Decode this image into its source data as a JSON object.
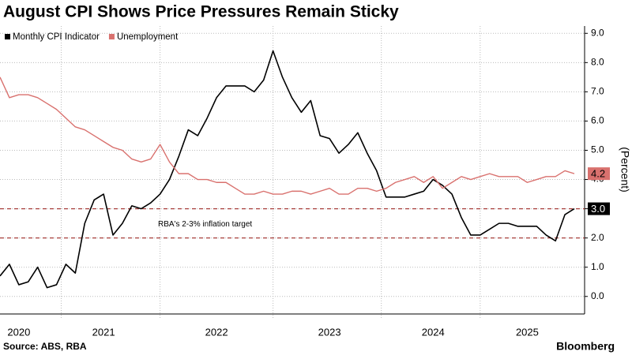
{
  "chart_data": {
    "type": "line",
    "title": "August CPI Shows Price Pressures Remain Sticky",
    "source": "Source: ABS, RBA",
    "brand": "Bloomberg",
    "y_axis_label": "(Percent)",
    "categories": [
      null,
      null,
      "2020",
      null,
      null,
      null,
      null,
      null,
      null,
      null,
      null,
      "2021",
      null,
      null,
      null,
      null,
      null,
      null,
      null,
      null,
      null,
      null,
      null,
      "2022",
      null,
      null,
      null,
      null,
      null,
      null,
      null,
      null,
      null,
      null,
      null,
      "2023",
      null,
      null,
      null,
      null,
      null,
      null,
      null,
      null,
      null,
      null,
      "2024",
      null,
      null,
      null,
      null,
      null,
      null,
      null,
      null,
      null,
      "2025",
      null,
      null,
      null,
      null,
      null
    ],
    "series": [
      {
        "name": "Monthly CPI Indicator",
        "color": "#000000",
        "values": [
          0.7,
          1.1,
          0.4,
          0.5,
          1.0,
          0.3,
          0.4,
          1.1,
          0.8,
          2.5,
          3.3,
          3.5,
          2.1,
          2.5,
          3.1,
          3.0,
          3.2,
          3.5,
          4.0,
          4.8,
          5.7,
          5.5,
          6.1,
          6.8,
          7.2,
          7.2,
          7.2,
          7.0,
          7.4,
          8.4,
          7.5,
          6.8,
          6.3,
          6.7,
          5.5,
          5.4,
          4.9,
          5.2,
          5.6,
          4.9,
          4.3,
          3.4,
          3.4,
          3.4,
          3.5,
          3.6,
          4.0,
          3.8,
          3.5,
          2.7,
          2.1,
          2.1,
          2.3,
          2.5,
          2.5,
          2.4,
          2.4,
          2.4,
          2.1,
          1.9,
          2.8,
          3.0
        ],
        "value_labels": [
          null,
          null,
          null,
          null,
          null,
          null,
          null,
          null,
          null,
          null,
          null,
          null,
          null,
          null,
          null,
          null,
          null,
          null,
          null,
          null,
          null,
          null,
          null,
          null,
          null,
          null,
          null,
          null,
          null,
          null,
          null,
          null,
          null,
          null,
          null,
          null,
          null,
          null,
          null,
          null,
          null,
          null,
          null,
          null,
          null,
          null,
          null,
          null,
          null,
          null,
          null,
          null,
          null,
          null,
          null,
          null,
          null,
          null,
          null,
          null,
          null,
          "3.0"
        ]
      },
      {
        "name": "Unemployment",
        "color": "#d9716e",
        "values": [
          7.5,
          6.8,
          6.9,
          6.9,
          6.8,
          6.6,
          6.4,
          6.1,
          5.8,
          5.7,
          5.5,
          5.3,
          5.1,
          5.0,
          4.7,
          4.6,
          4.7,
          5.2,
          4.6,
          4.2,
          4.2,
          4.0,
          4.0,
          3.9,
          3.9,
          3.7,
          3.5,
          3.5,
          3.6,
          3.5,
          3.5,
          3.6,
          3.6,
          3.5,
          3.6,
          3.7,
          3.5,
          3.5,
          3.7,
          3.7,
          3.6,
          3.7,
          3.9,
          4.0,
          4.1,
          3.9,
          4.1,
          3.7,
          3.9,
          4.1,
          4.0,
          4.1,
          4.2,
          4.1,
          4.1,
          4.1,
          3.9,
          4.0,
          4.1,
          4.1,
          4.3,
          4.2
        ],
        "value_labels": [
          null,
          null,
          null,
          null,
          null,
          null,
          null,
          null,
          null,
          null,
          null,
          null,
          null,
          null,
          null,
          null,
          null,
          null,
          null,
          null,
          null,
          null,
          null,
          null,
          null,
          null,
          null,
          null,
          null,
          null,
          null,
          null,
          null,
          null,
          null,
          null,
          null,
          null,
          null,
          null,
          null,
          null,
          null,
          null,
          null,
          null,
          null,
          null,
          null,
          null,
          null,
          null,
          null,
          null,
          null,
          null,
          null,
          null,
          null,
          null,
          null,
          "4.2"
        ]
      }
    ],
    "reference_lines": {
      "values": [
        2,
        3
      ],
      "color": "#a8403d",
      "label": "RBA's 2-3% inflation target"
    },
    "ylim": [
      -0.6,
      9.25
    ],
    "yticks": [
      {
        "value": 0,
        "label": "0.0"
      },
      {
        "value": 1,
        "label": "1.0"
      },
      {
        "value": 2,
        "label": "2.0"
      },
      {
        "value": 3,
        "label": "3.0"
      },
      {
        "value": 4,
        "label": "4.0"
      },
      {
        "value": 5,
        "label": "5.0"
      },
      {
        "value": 6,
        "label": "6.0"
      },
      {
        "value": 7,
        "label": "7.0"
      },
      {
        "value": 8,
        "label": "8.0"
      },
      {
        "value": 9,
        "label": "9.0"
      }
    ],
    "grid": true,
    "legend": "top-left"
  }
}
